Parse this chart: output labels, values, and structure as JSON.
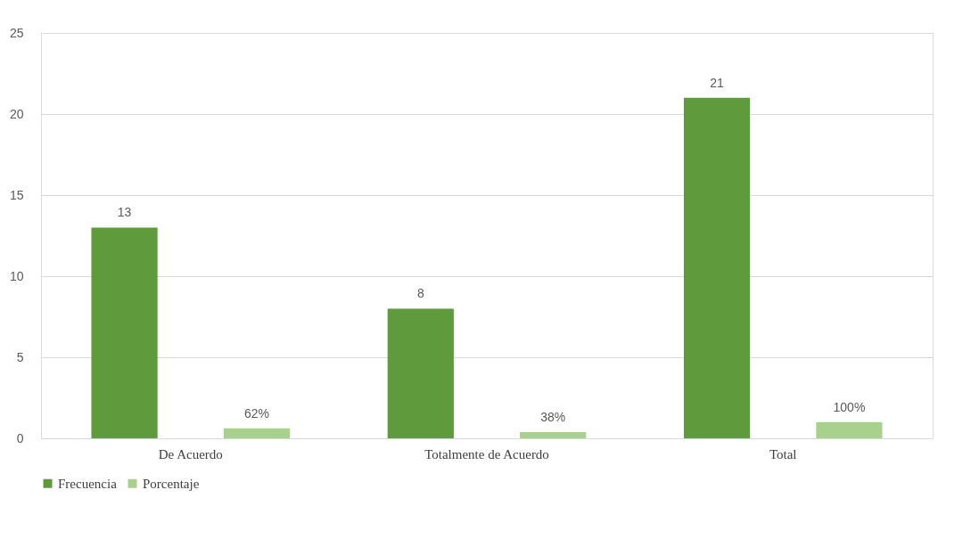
{
  "chart_data": {
    "type": "bar",
    "categories": [
      "De Acuerdo",
      "Totalmente de Acuerdo",
      "Total"
    ],
    "series": [
      {
        "name": "Frecuencia",
        "color": "#5f9a3c",
        "values": [
          13,
          8,
          21
        ],
        "value_labels": [
          "13",
          "8",
          "21"
        ]
      },
      {
        "name": "Porcentaje",
        "color": "#a9d18e",
        "values": [
          0.62,
          0.38,
          1
        ],
        "value_labels": [
          "62%",
          "38%",
          "100%"
        ]
      }
    ],
    "ylim": [
      0,
      25
    ],
    "yticks": [
      0,
      5,
      10,
      15,
      20,
      25
    ],
    "grid": "y",
    "legend": "bottom"
  }
}
